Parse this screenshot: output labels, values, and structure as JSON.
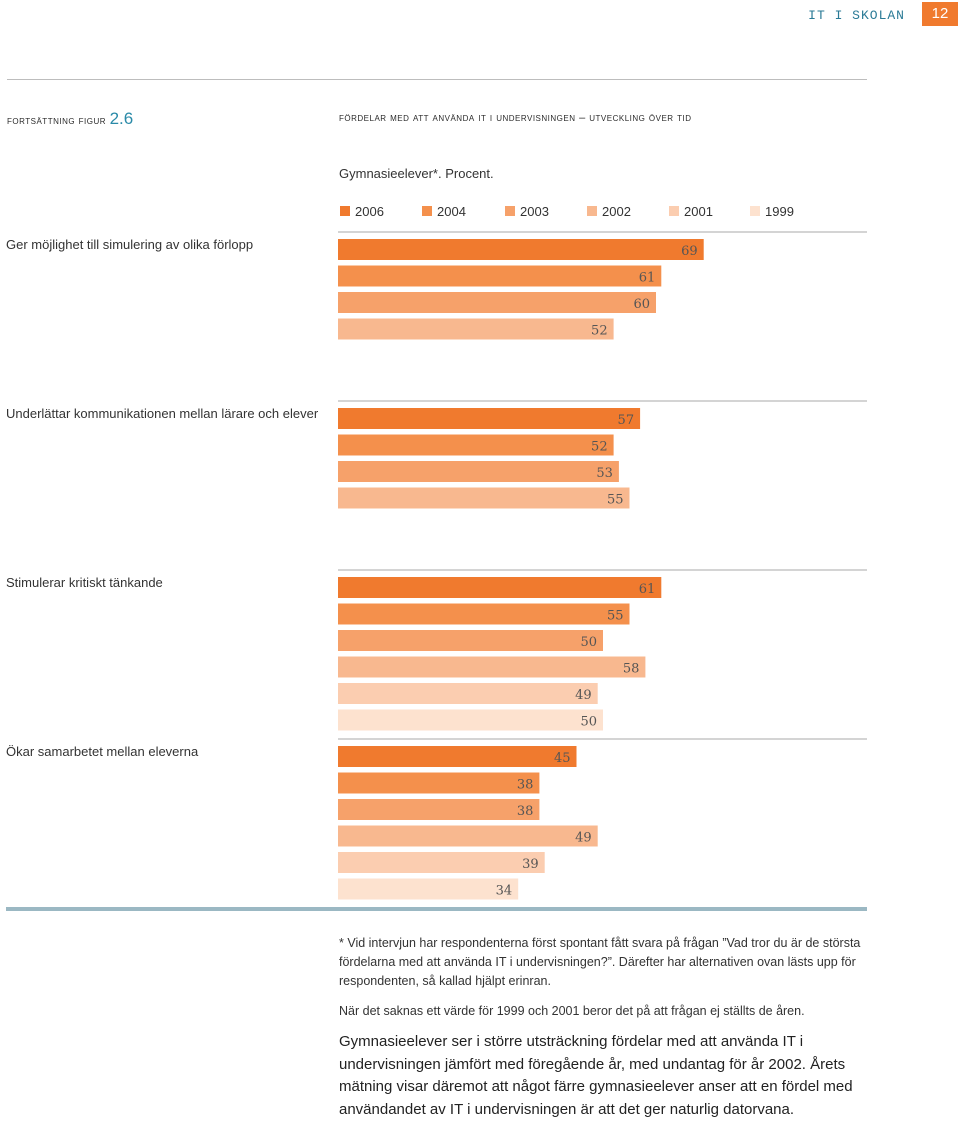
{
  "header": {
    "section": "IT I SKOLAN",
    "page_number": "12"
  },
  "figure": {
    "label": "fortsättning figur",
    "number": "2.6",
    "title": "fördelar med att använda it i undervisningen – utveckling över tid",
    "subtitle": "Gymnasieelever*. Procent."
  },
  "chart_data": {
    "type": "bar",
    "orientation": "horizontal",
    "title": "Fördelar med att använda IT i undervisningen – utveckling över tid",
    "legend": [
      "2006",
      "2004",
      "2003",
      "2002",
      "2001",
      "1999"
    ],
    "legend_position": "top",
    "colors": {
      "2006": "#f07a2e",
      "2004": "#f4904c",
      "2003": "#f6a16a",
      "2002": "#f8b88f",
      "2001": "#fbcdb0",
      "1999": "#fde2cf"
    },
    "xlim": [
      0,
      100
    ],
    "categories": [
      {
        "label": "Ger möjlighet till simulering av olika förlopp",
        "bars": [
          {
            "series": "2006",
            "value": 69
          },
          {
            "series": "2004",
            "value": 61
          },
          {
            "series": "2003",
            "value": 60
          },
          {
            "series": "2002",
            "value": 52
          }
        ]
      },
      {
        "label": "Underlättar kommunikationen mellan lärare och elever",
        "bars": [
          {
            "series": "2006",
            "value": 57
          },
          {
            "series": "2004",
            "value": 52
          },
          {
            "series": "2003",
            "value": 53
          },
          {
            "series": "2002",
            "value": 55
          }
        ]
      },
      {
        "label": "Stimulerar kritiskt tänkande",
        "bars": [
          {
            "series": "2006",
            "value": 61
          },
          {
            "series": "2004",
            "value": 55
          },
          {
            "series": "2003",
            "value": 50
          },
          {
            "series": "2002",
            "value": 58
          },
          {
            "series": "2001",
            "value": 49
          },
          {
            "series": "1999",
            "value": 50
          }
        ]
      },
      {
        "label": "Ökar samarbetet mellan eleverna",
        "bars": [
          {
            "series": "2006",
            "value": 45
          },
          {
            "series": "2004",
            "value": 38
          },
          {
            "series": "2003",
            "value": 38
          },
          {
            "series": "2002",
            "value": 49
          },
          {
            "series": "2001",
            "value": 39
          },
          {
            "series": "1999",
            "value": 34
          }
        ]
      }
    ]
  },
  "notes": {
    "footnote": "* Vid intervjun har respondenterna först spontant fått svara på frågan ”Vad tror du är de största fördelarna med att använda IT i undervisningen?”. Därefter har alternativen ovan lästs upp för respondenten, så kallad hjälpt erinran.",
    "missing_values": "När det saknas ett värde för 1999 och 2001 beror det på att frågan ej ställts de åren."
  },
  "body_text": "Gymnasieelever ser i större utsträckning fördelar med att använda IT i undervisningen jämfört med föregående år, med undantag för år 2002. Årets mätning visar däremot att något färre gymnasieelever anser att en fördel med användandet av IT i undervisningen är att det ger naturlig datorvana."
}
